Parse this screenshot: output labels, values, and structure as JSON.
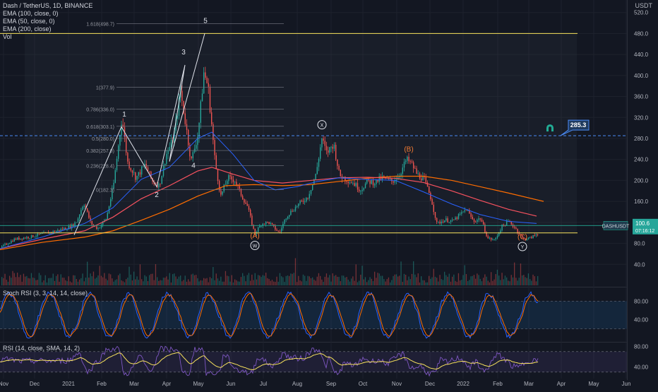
{
  "header": {
    "symbol_line": "Dash / TetherUS, 1D, BINANCE",
    "indicators": [
      "EMA (100, close, 0)",
      "EMA (50, close, 0)",
      "EMA (200, close)",
      "Vol"
    ],
    "currency": "USDT"
  },
  "chart_data": [
    {
      "type": "candlestick",
      "pane": "price",
      "title": "Dash / TetherUS, 1D, BINANCE",
      "y_ticks": [
        "520.0",
        "480.0",
        "440.0",
        "400.0",
        "360.0",
        "320.0",
        "280.0",
        "240.0",
        "200.0",
        "160.0",
        "120.0",
        "80.0",
        "40.0"
      ],
      "x_ticks": [
        "Nov",
        "Dec",
        "2021",
        "Feb",
        "Mar",
        "Apr",
        "May",
        "Jun",
        "Jul",
        "Aug",
        "Sep",
        "Oct",
        "Nov",
        "Dec",
        "2022",
        "Feb",
        "Mar",
        "Apr",
        "May",
        "Jun"
      ],
      "ylim": [
        0,
        525
      ],
      "last_price": "100.6",
      "countdown": "07:16:12",
      "price_badge": "DASHUSDT",
      "target_label": "285.3",
      "fib_levels": [
        {
          "label": "1.618(498.7)",
          "value": 498.7
        },
        {
          "label": "1(377.9)",
          "value": 377.9
        },
        {
          "label": "0.786(336.0)",
          "value": 336.0
        },
        {
          "label": "0.618(303.1)",
          "value": 303.1
        },
        {
          "label": "0.5(280.0)",
          "value": 280.0
        },
        {
          "label": "0.382(257.0)",
          "value": 257.0
        },
        {
          "label": "0.236(228.4)",
          "value": 228.4
        },
        {
          "label": "0(182.3)",
          "value": 182.3
        }
      ],
      "wave_labels": [
        "1",
        "2",
        "3",
        "4",
        "5",
        "(A)",
        "W",
        "X",
        "(B)",
        "(C)",
        "Y"
      ],
      "series": [
        {
          "name": "EMA (100, close, 0)",
          "color": "#f7525f"
        },
        {
          "name": "EMA (50, close, 0)",
          "color": "#2962ff"
        },
        {
          "name": "EMA (200, close)",
          "color": "#ff6d00"
        }
      ],
      "path": [
        [
          0,
          72
        ],
        [
          20,
          88
        ],
        [
          40,
          92
        ],
        [
          60,
          98
        ],
        [
          80,
          104
        ],
        [
          100,
          112
        ],
        [
          108,
          122
        ],
        [
          118,
          158
        ],
        [
          128,
          118
        ],
        [
          138,
          108
        ],
        [
          150,
          128
        ],
        [
          160,
          190
        ],
        [
          172,
          320
        ],
        [
          180,
          235
        ],
        [
          192,
          205
        ],
        [
          205,
          230
        ],
        [
          215,
          198
        ],
        [
          225,
          190
        ],
        [
          235,
          250
        ],
        [
          245,
          280
        ],
        [
          255,
          370
        ],
        [
          262,
          310
        ],
        [
          270,
          236
        ],
        [
          280,
          290
        ],
        [
          288,
          405
        ],
        [
          294,
          380
        ],
        [
          304,
          235
        ],
        [
          312,
          170
        ],
        [
          322,
          205
        ],
        [
          332,
          200
        ],
        [
          340,
          175
        ],
        [
          350,
          150
        ],
        [
          360,
          98
        ],
        [
          370,
          118
        ],
        [
          380,
          120
        ],
        [
          395,
          100
        ],
        [
          405,
          132
        ],
        [
          420,
          152
        ],
        [
          435,
          168
        ],
        [
          447,
          212
        ],
        [
          455,
          280
        ],
        [
          462,
          252
        ],
        [
          472,
          270
        ],
        [
          480,
          210
        ],
        [
          490,
          202
        ],
        [
          500,
          195
        ],
        [
          510,
          182
        ],
        [
          520,
          198
        ],
        [
          530,
          196
        ],
        [
          540,
          205
        ],
        [
          555,
          198
        ],
        [
          565,
          210
        ],
        [
          575,
          240
        ],
        [
          582,
          232
        ],
        [
          590,
          212
        ],
        [
          600,
          202
        ],
        [
          610,
          165
        ],
        [
          618,
          118
        ],
        [
          630,
          125
        ],
        [
          640,
          122
        ],
        [
          660,
          145
        ],
        [
          670,
          122
        ],
        [
          680,
          128
        ],
        [
          690,
          90
        ],
        [
          700,
          86
        ],
        [
          710,
          112
        ],
        [
          720,
          122
        ],
        [
          730,
          108
        ],
        [
          740,
          88
        ],
        [
          750,
          90
        ],
        [
          760,
          98
        ]
      ],
      "ema50": [
        [
          0,
          70
        ],
        [
          60,
          92
        ],
        [
          120,
          118
        ],
        [
          160,
          148
        ],
        [
          200,
          202
        ],
        [
          240,
          225
        ],
        [
          280,
          280
        ],
        [
          300,
          292
        ],
        [
          330,
          250
        ],
        [
          360,
          200
        ],
        [
          390,
          182
        ],
        [
          420,
          188
        ],
        [
          450,
          198
        ],
        [
          480,
          205
        ],
        [
          520,
          202
        ],
        [
          560,
          200
        ],
        [
          600,
          178
        ],
        [
          640,
          155
        ],
        [
          680,
          135
        ],
        [
          720,
          122
        ],
        [
          760,
          118
        ]
      ],
      "ema100": [
        [
          0,
          70
        ],
        [
          60,
          88
        ],
        [
          120,
          104
        ],
        [
          160,
          130
        ],
        [
          200,
          165
        ],
        [
          240,
          190
        ],
        [
          280,
          218
        ],
        [
          300,
          225
        ],
        [
          330,
          212
        ],
        [
          360,
          200
        ],
        [
          400,
          195
        ],
        [
          440,
          200
        ],
        [
          480,
          205
        ],
        [
          520,
          206
        ],
        [
          560,
          204
        ],
        [
          600,
          196
        ],
        [
          640,
          180
        ],
        [
          680,
          162
        ],
        [
          720,
          145
        ],
        [
          760,
          132
        ]
      ],
      "ema200": [
        [
          0,
          68
        ],
        [
          60,
          82
        ],
        [
          120,
          92
        ],
        [
          160,
          104
        ],
        [
          200,
          124
        ],
        [
          240,
          145
        ],
        [
          280,
          170
        ],
        [
          320,
          190
        ],
        [
          360,
          192
        ],
        [
          400,
          190
        ],
        [
          440,
          192
        ],
        [
          480,
          198
        ],
        [
          520,
          204
        ],
        [
          560,
          208
        ],
        [
          600,
          208
        ],
        [
          640,
          200
        ],
        [
          680,
          188
        ],
        [
          720,
          176
        ],
        [
          770,
          160
        ]
      ]
    },
    {
      "type": "line",
      "pane": "stoch_rsi",
      "title": "Stoch RSI (3, 3, 14, 14, close)",
      "y_ticks": [
        "80.00",
        "40.00"
      ],
      "ylim": [
        -5,
        105
      ],
      "bands": [
        80,
        20
      ],
      "series": [
        {
          "name": "K",
          "color": "#2962ff"
        },
        {
          "name": "D",
          "color": "#ff6d00"
        }
      ]
    },
    {
      "type": "line",
      "pane": "rsi",
      "title": "RSI (14, close, SMA, 14, 2)",
      "y_ticks": [
        "80.00",
        "40.00"
      ],
      "ylim": [
        20,
        85
      ],
      "bands": [
        70,
        30
      ],
      "series": [
        {
          "name": "RSI",
          "color": "#7e57c2"
        },
        {
          "name": "SMA",
          "color": "#f9e35d"
        }
      ]
    }
  ],
  "colors": {
    "background": "#131722",
    "up": "#26a69a",
    "down": "#ef5350",
    "grid": "#1e222d",
    "axis_text": "#b2b5be",
    "yellow": "#f9e35d",
    "cyan": "#22ab94",
    "wave_orange": "#f57c33",
    "last_price_bg": "#26a69a"
  },
  "icons": [
    "magnet-icon"
  ]
}
